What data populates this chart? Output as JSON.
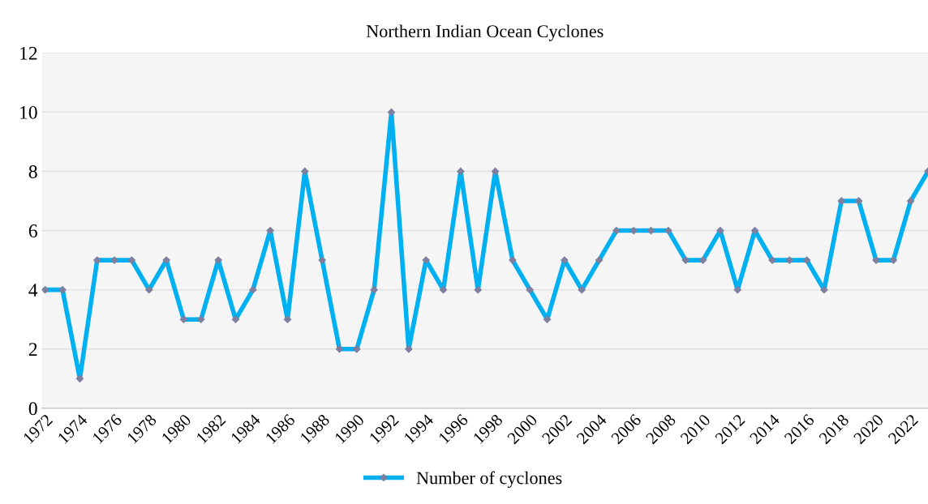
{
  "chart_data": {
    "type": "line",
    "title": "Northern Indian Ocean Cyclones",
    "categories": [
      "1972",
      null,
      "1974",
      null,
      "1976",
      null,
      "1978",
      null,
      "1980",
      null,
      "1982",
      null,
      "1984",
      null,
      "1986",
      null,
      "1988",
      null,
      "1990",
      null,
      "1992",
      null,
      "1994",
      null,
      "1996",
      null,
      "1998",
      null,
      "2000",
      null,
      "2002",
      null,
      "2004",
      null,
      "2006",
      null,
      "2008",
      null,
      "2010",
      null,
      "2012",
      null,
      "2014",
      null,
      "2016",
      null,
      "2018",
      null,
      "2020",
      null,
      "2022",
      null
    ],
    "series": [
      {
        "name": "Number of cyclones",
        "color": "#00b0f0",
        "values": [
          4,
          4,
          1,
          5,
          5,
          5,
          4,
          5,
          3,
          3,
          5,
          3,
          4,
          6,
          3,
          8,
          5,
          2,
          2,
          4,
          10,
          2,
          5,
          4,
          8,
          4,
          8,
          5,
          4,
          3,
          5,
          4,
          5,
          6,
          6,
          6,
          6,
          5,
          5,
          6,
          4,
          6,
          5,
          5,
          5,
          4,
          7,
          7,
          5,
          5,
          7,
          8
        ]
      }
    ],
    "ylim": [
      0,
      12
    ],
    "yticks": [
      0,
      2,
      4,
      6,
      8,
      10,
      12
    ],
    "grid": "y",
    "legend": "bottom",
    "marker": "diamond",
    "line_style": "solid"
  }
}
